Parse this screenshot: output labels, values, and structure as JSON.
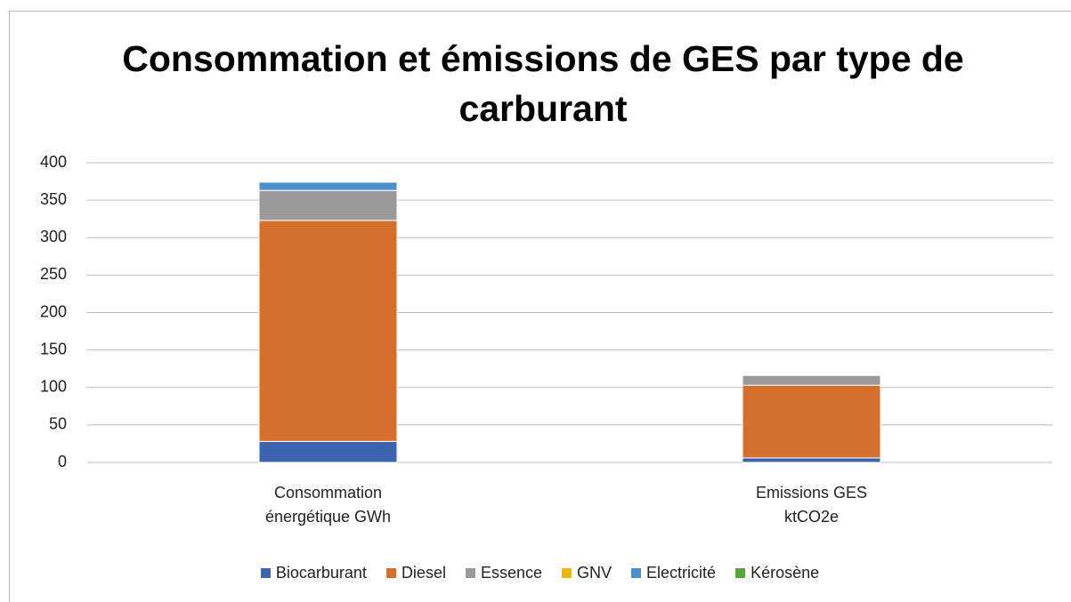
{
  "chart_data": {
    "type": "stacked_bar",
    "title": "Consommation et émissions de GES par type de carburant",
    "categories": [
      "Consommation énergétique GWh",
      "Emissions GES ktCO2e"
    ],
    "series": [
      {
        "name": "Biocarburant",
        "color": "#3c64b1",
        "values": [
          28,
          6
        ]
      },
      {
        "name": "Diesel",
        "color": "#d4702c",
        "values": [
          295,
          97
        ]
      },
      {
        "name": "Essence",
        "color": "#9a9a9a",
        "values": [
          40,
          13
        ]
      },
      {
        "name": "GNV",
        "color": "#f2b600",
        "values": [
          0,
          0
        ]
      },
      {
        "name": "Electricité",
        "color": "#4d8fcb",
        "values": [
          11,
          0
        ]
      },
      {
        "name": "Kérosène",
        "color": "#5aa33c",
        "values": [
          0,
          0
        ]
      }
    ],
    "ylim": [
      0,
      400
    ],
    "yticks": [
      0,
      50,
      100,
      150,
      200,
      250,
      300,
      350,
      400
    ],
    "grid": true
  }
}
